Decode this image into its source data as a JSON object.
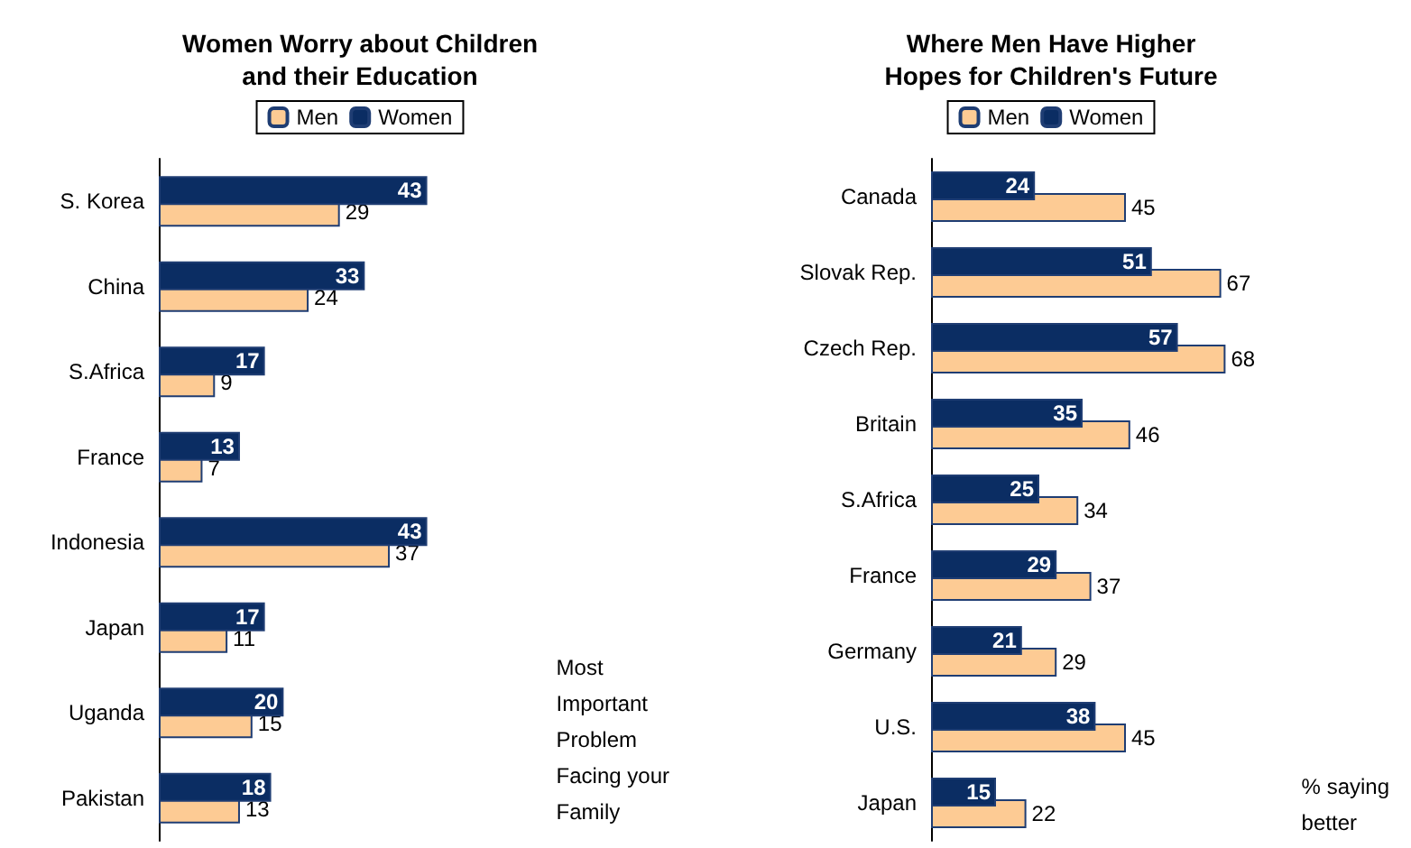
{
  "chart_data": [
    {
      "type": "bar",
      "orientation": "horizontal",
      "title": "Women Worry about Children\nand their Education",
      "categories": [
        "S. Korea",
        "China",
        "S.Africa",
        "France",
        "Indonesia",
        "Japan",
        "Uganda",
        "Pakistan"
      ],
      "series": [
        {
          "name": "Men",
          "color": "#fdcb94",
          "values": [
            29,
            24,
            9,
            7,
            37,
            11,
            15,
            13
          ]
        },
        {
          "name": "Women",
          "color": "#0b2d63",
          "values": [
            43,
            33,
            17,
            13,
            43,
            17,
            20,
            18
          ]
        }
      ],
      "data_labels": true,
      "legend": "top",
      "annotations": [
        "Most\nImportant\nProblem\nFacing your\nFamily"
      ]
    },
    {
      "type": "bar",
      "orientation": "horizontal",
      "title": "Where Men Have Higher\nHopes for Children's Future",
      "categories": [
        "Canada",
        "Slovak Rep.",
        "Czech Rep.",
        "Britain",
        "S.Africa",
        "France",
        "Germany",
        "U.S.",
        "Japan"
      ],
      "series": [
        {
          "name": "Men",
          "color": "#fdcb94",
          "values": [
            45,
            67,
            68,
            46,
            34,
            37,
            29,
            45,
            22
          ]
        },
        {
          "name": "Women",
          "color": "#0b2d63",
          "values": [
            24,
            51,
            57,
            35,
            25,
            29,
            21,
            38,
            15
          ]
        }
      ],
      "data_labels": true,
      "legend": "top",
      "annotations": [
        "% saying\nbetter"
      ]
    }
  ]
}
